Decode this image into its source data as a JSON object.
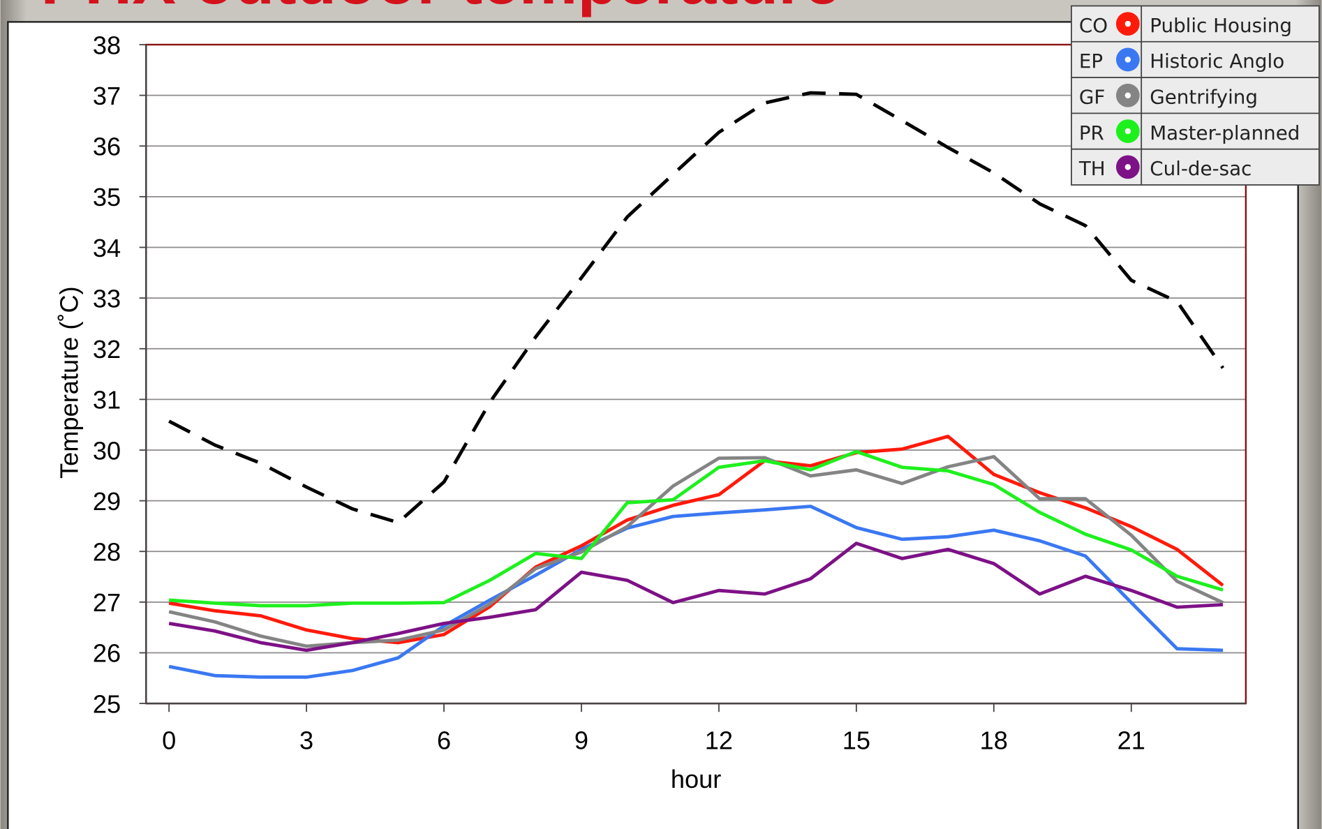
{
  "chart_data": {
    "type": "line",
    "title": "PHX outdoor temperature",
    "x_label": "hour",
    "y_label": "Temperature (˚C)",
    "x": [
      0,
      1,
      2,
      3,
      4,
      5,
      6,
      7,
      8,
      9,
      10,
      11,
      12,
      13,
      14,
      15,
      16,
      17,
      18,
      19,
      20,
      21,
      22,
      23
    ],
    "xlim": [
      -0.5,
      23.5
    ],
    "xticks": [
      0,
      3,
      6,
      9,
      12,
      15,
      18,
      21
    ],
    "ylim": [
      25,
      38
    ],
    "yticks": [
      25,
      26,
      27,
      28,
      29,
      30,
      31,
      32,
      33,
      34,
      35,
      36,
      37,
      38
    ],
    "grid": true,
    "legend": "upper right",
    "series": [
      {
        "color": "#000000",
        "style": "dashed",
        "values": [
          30.57,
          30.1,
          29.74,
          29.27,
          28.84,
          28.57,
          29.37,
          30.94,
          32.23,
          33.4,
          34.6,
          35.44,
          36.27,
          36.85,
          37.05,
          37.02,
          36.5,
          35.97,
          35.47,
          34.86,
          34.43,
          33.35,
          32.93,
          31.62
        ]
      },
      {
        "name": "Public Housing",
        "code": "CO",
        "color": "#ff1a0a",
        "values": [
          26.98,
          26.83,
          26.73,
          26.45,
          26.28,
          26.2,
          26.36,
          26.91,
          27.69,
          28.11,
          28.62,
          28.91,
          29.12,
          29.79,
          29.69,
          29.95,
          30.02,
          30.27,
          29.52,
          29.16,
          28.86,
          28.49,
          28.04,
          27.33
        ]
      },
      {
        "name": "Historic Anglo",
        "code": "EP",
        "color": "#3a78f2",
        "values": [
          25.73,
          25.55,
          25.52,
          25.52,
          25.65,
          25.9,
          26.53,
          27.04,
          27.53,
          28.04,
          28.46,
          28.69,
          28.76,
          28.82,
          28.89,
          28.47,
          28.24,
          28.29,
          28.42,
          28.21,
          27.91,
          26.99,
          26.08,
          26.05
        ]
      },
      {
        "name": "Gentrifying",
        "code": "GF",
        "color": "#848484",
        "values": [
          26.81,
          26.61,
          26.33,
          26.13,
          26.2,
          26.25,
          26.45,
          26.96,
          27.66,
          27.99,
          28.49,
          29.29,
          29.84,
          29.85,
          29.49,
          29.61,
          29.34,
          29.67,
          29.87,
          29.04,
          29.04,
          28.32,
          27.41,
          26.99
        ]
      },
      {
        "name": "Master-planned",
        "code": "PR",
        "color": "#1ef01e",
        "values": [
          27.04,
          26.98,
          26.93,
          26.93,
          26.98,
          26.98,
          26.99,
          27.43,
          27.96,
          27.86,
          28.96,
          29.02,
          29.66,
          29.79,
          29.61,
          29.97,
          29.66,
          29.59,
          29.32,
          28.77,
          28.34,
          28.03,
          27.51,
          27.24
        ]
      },
      {
        "name": "Cul-de-sac",
        "code": "TH",
        "color": "#7d1186",
        "values": [
          26.58,
          26.43,
          26.2,
          26.05,
          26.2,
          26.38,
          26.58,
          26.7,
          26.85,
          27.59,
          27.43,
          26.99,
          27.23,
          27.16,
          27.46,
          28.16,
          27.86,
          28.04,
          27.76,
          27.16,
          27.51,
          27.23,
          26.9,
          26.95
        ]
      }
    ]
  }
}
